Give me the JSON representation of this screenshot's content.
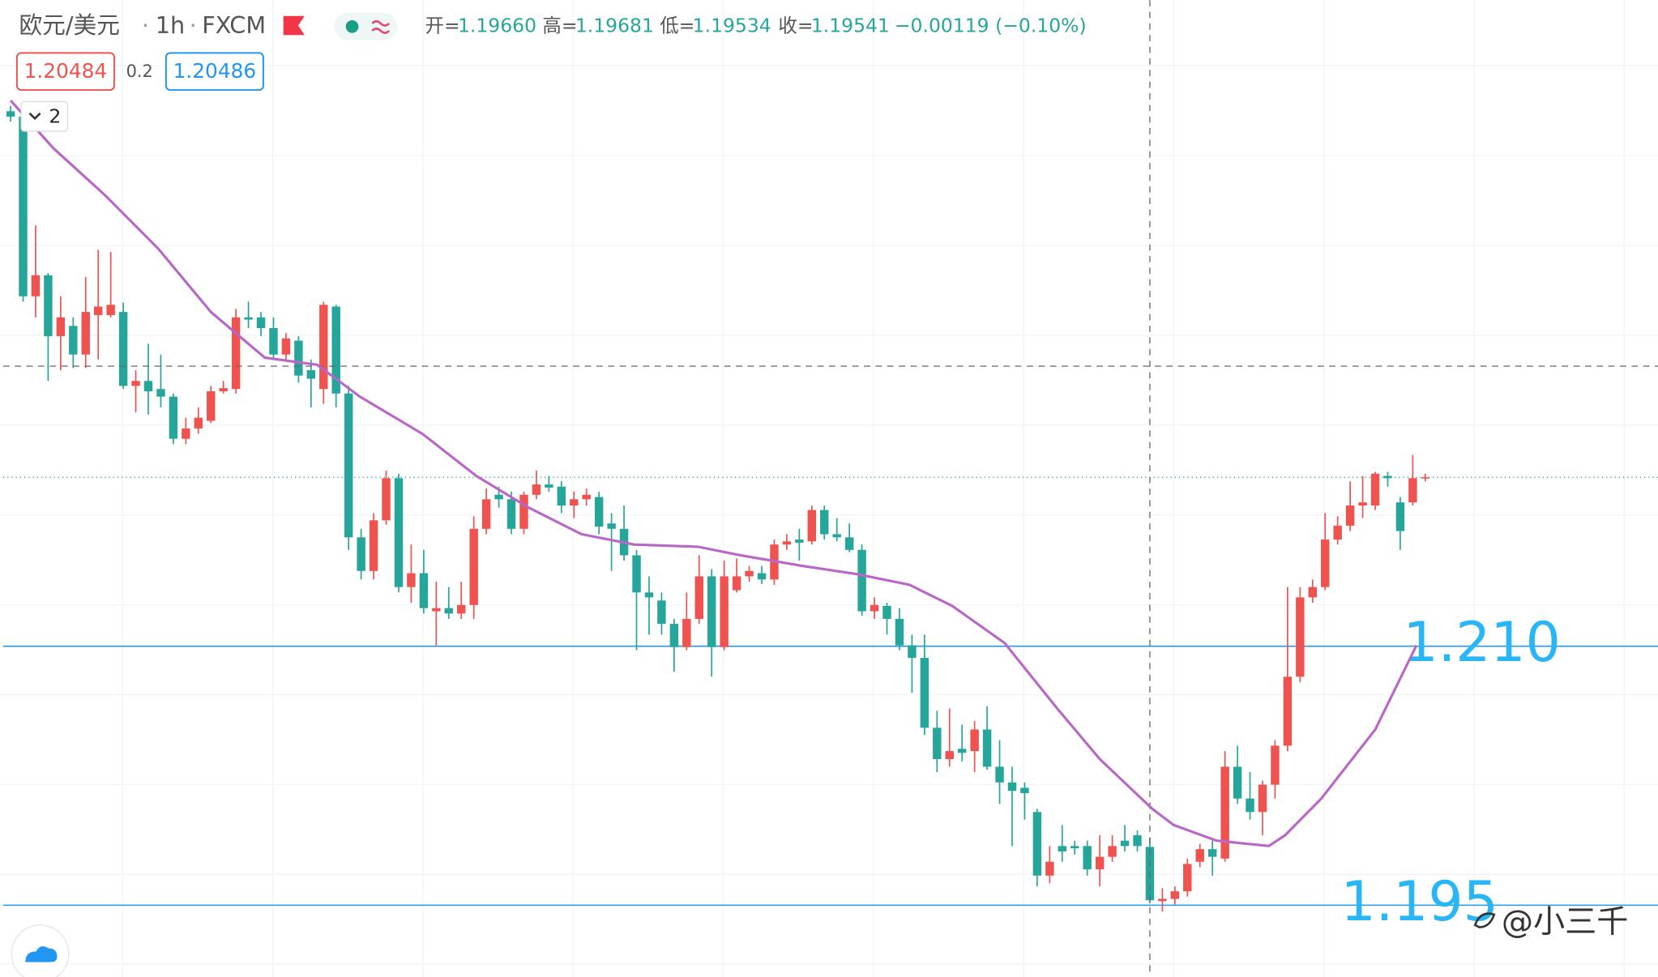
{
  "header": {
    "symbol": "欧元/美元",
    "separator": "·",
    "interval": "1h",
    "source": "FXCM",
    "ohlc": [
      {
        "label": "开=",
        "text": "1.19660"
      },
      {
        "label": "高=",
        "text": "1.19681"
      },
      {
        "label": "低=",
        "text": "1.19534"
      },
      {
        "label": "收=",
        "text": "1.19541"
      }
    ],
    "change": "−0.00119 (−0.10%)",
    "bid": 1.20484,
    "spread": 0.2,
    "ask": 1.20486,
    "indicator_count": 2
  },
  "watermark": "@小三千",
  "chart_data": {
    "type": "candlestick",
    "up_color": "#ef5350",
    "down_color": "#26a69a",
    "ma_color": "#b967c7",
    "level_color": "#2196f3",
    "annotation_color": "#29b6f6",
    "ylim": [
      1.1937,
      1.2155
    ],
    "grid": true,
    "open": [
      1.21302,
      1.2129,
      1.20889,
      1.20936,
      1.208,
      1.20823,
      1.20759,
      1.20847,
      1.20847,
      1.20854,
      1.20689,
      1.207,
      1.20682,
      1.20665,
      1.20571,
      1.20594,
      1.20611,
      1.20677,
      1.20682,
      1.20842,
      1.20842,
      1.20818,
      1.20759,
      1.2079,
      1.20724,
      1.20682,
      1.20866,
      1.20672,
      1.20351,
      1.20276,
      1.20389,
      1.20483,
      1.2024,
      1.20271,
      1.20186,
      1.20193,
      1.20181,
      1.202,
      1.2037,
      1.20446,
      1.20436,
      1.2037,
      1.20446,
      1.20469,
      1.20464,
      1.20422,
      1.20436,
      1.20441,
      1.20382,
      1.2037,
      1.20311,
      1.20228,
      1.2021,
      1.20158,
      1.20106,
      1.20169,
      1.20264,
      1.20106,
      1.20233,
      1.20264,
      1.20271,
      1.20257,
      1.20335,
      1.20346,
      1.20342,
      1.20412,
      1.20358,
      1.20351,
      1.20323,
      1.20186,
      1.20198,
      1.20169,
      1.2011,
      1.20082,
      1.19926,
      1.19856,
      1.19879,
      1.19874,
      1.19922,
      1.19839,
      1.19804,
      1.19792,
      1.19738,
      1.19596,
      1.19662,
      1.19662,
      1.19662,
      1.1961,
      1.19638,
      1.19674,
      1.19686,
      1.1966,
      1.19539,
      1.19544,
      1.19561,
      1.19627,
      1.19655,
      1.19634,
      1.19839,
      1.19768,
      1.19738,
      1.19799,
      1.19886,
      1.2004,
      1.20217,
      1.2024,
      1.20346,
      1.20377,
      1.20422,
      1.20422,
      1.20488,
      1.20429,
      1.20429,
      1.20484
    ],
    "high": [
      1.21314,
      1.21314,
      1.21047,
      1.20941,
      1.20889,
      1.20842,
      1.20932,
      1.20993,
      1.20988,
      1.20875,
      1.20724,
      1.20783,
      1.20759,
      1.20672,
      1.20618,
      1.20641,
      1.20689,
      1.207,
      1.20861,
      1.20877,
      1.20854,
      1.20842,
      1.20807,
      1.208,
      1.20748,
      1.20877,
      1.2087,
      1.20689,
      1.2037,
      1.20405,
      1.205,
      1.20493,
      1.20335,
      1.20323,
      1.20252,
      1.2024,
      1.20252,
      1.20398,
      1.2046,
      1.20464,
      1.20453,
      1.20453,
      1.205,
      1.20488,
      1.20476,
      1.20453,
      1.2046,
      1.20453,
      1.20405,
      1.20422,
      1.20323,
      1.20264,
      1.20228,
      1.20169,
      1.20228,
      1.20311,
      1.2028,
      1.20299,
      1.20304,
      1.20287,
      1.20287,
      1.20346,
      1.20358,
      1.2037,
      1.20422,
      1.20422,
      1.20394,
      1.20382,
      1.20335,
      1.20217,
      1.20205,
      1.20193,
      1.20134,
      1.20134,
      1.19964,
      1.19969,
      1.19933,
      1.19941,
      1.19974,
      1.19898,
      1.19839,
      1.19804,
      1.19745,
      1.19662,
      1.19709,
      1.19674,
      1.19674,
      1.19686,
      1.19686,
      1.19709,
      1.19697,
      1.19681,
      1.19568,
      1.19572,
      1.19634,
      1.19667,
      1.19674,
      1.19874,
      1.19886,
      1.19827,
      1.19808,
      1.19898,
      1.2024,
      1.2024,
      1.20257,
      1.20405,
      1.20398,
      1.20476,
      1.20488,
      1.20497,
      1.20497,
      1.20441,
      1.20535,
      1.20493
    ],
    "low": [
      1.21279,
      1.20877,
      1.20842,
      1.207,
      1.20724,
      1.20729,
      1.20729,
      1.20748,
      1.20842,
      1.20682,
      1.2063,
      1.20625,
      1.20641,
      1.20559,
      1.20559,
      1.20582,
      1.20606,
      1.20672,
      1.20672,
      1.20818,
      1.208,
      1.20748,
      1.20748,
      1.20696,
      1.20641,
      1.20649,
      1.20641,
      1.20323,
      1.20257,
      1.20257,
      1.20379,
      1.20228,
      1.20205,
      1.20181,
      1.2011,
      1.20169,
      1.20169,
      1.20169,
      1.20358,
      1.20417,
      1.20358,
      1.20358,
      1.20436,
      1.20453,
      1.20405,
      1.20394,
      1.20422,
      1.20358,
      1.20276,
      1.20299,
      1.20099,
      1.20134,
      1.20134,
      1.20051,
      1.20099,
      1.20158,
      1.2004,
      1.20099,
      1.20228,
      1.20252,
      1.20247,
      1.20245,
      1.20323,
      1.20299,
      1.20335,
      1.20346,
      1.20342,
      1.20318,
      1.20176,
      1.20169,
      1.20134,
      1.20099,
      1.20004,
      1.1991,
      1.19827,
      1.19839,
      1.19851,
      1.19827,
      1.19832,
      1.19756,
      1.19662,
      1.19721,
      1.19572,
      1.19579,
      1.19627,
      1.19643,
      1.19596,
      1.19572,
      1.19627,
      1.1965,
      1.1965,
      1.19534,
      1.19516,
      1.19532,
      1.19549,
      1.19615,
      1.19596,
      1.19627,
      1.19756,
      1.19721,
      1.19686,
      1.19768,
      1.19874,
      1.20028,
      1.20205,
      1.20233,
      1.20335,
      1.20365,
      1.20394,
      1.20412,
      1.20464,
      1.20323,
      1.20422,
      1.20476
    ],
    "close": [
      1.2129,
      1.20889,
      1.20936,
      1.208,
      1.20842,
      1.20759,
      1.20854,
      1.20866,
      1.2087,
      1.20689,
      1.207,
      1.20677,
      1.20665,
      1.20571,
      1.20594,
      1.20618,
      1.20677,
      1.20684,
      1.20842,
      1.20837,
      1.20818,
      1.20759,
      1.20795,
      1.20712,
      1.20705,
      1.2087,
      1.20672,
      1.20351,
      1.20276,
      1.20389,
      1.20483,
      1.2024,
      1.20271,
      1.20193,
      1.20193,
      1.20181,
      1.202,
      1.2037,
      1.20436,
      1.20436,
      1.2037,
      1.20446,
      1.20469,
      1.20462,
      1.20422,
      1.20436,
      1.20446,
      1.20375,
      1.2037,
      1.20311,
      1.20228,
      1.20217,
      1.20158,
      1.20106,
      1.20169,
      1.20264,
      1.20106,
      1.20264,
      1.20264,
      1.20276,
      1.20257,
      1.20335,
      1.20342,
      1.20339,
      1.20412,
      1.20358,
      1.20351,
      1.20323,
      1.20186,
      1.202,
      1.20169,
      1.2011,
      1.20082,
      1.19926,
      1.19856,
      1.19874,
      1.1987,
      1.19922,
      1.19839,
      1.19804,
      1.19785,
      1.1978,
      1.19596,
      1.19627,
      1.1965,
      1.19657,
      1.1961,
      1.19638,
      1.19662,
      1.19662,
      1.19662,
      1.19541,
      1.19544,
      1.19561,
      1.19622,
      1.19655,
      1.19638,
      1.19839,
      1.19768,
      1.19738,
      1.19799,
      1.19886,
      1.2004,
      1.20217,
      1.2024,
      1.20346,
      1.20377,
      1.20422,
      1.20429,
      1.20493,
      1.20483,
      1.20365,
      1.20483,
      1.20485
    ],
    "ma": {
      "x": [
        0,
        3.4,
        7.6,
        11.8,
        16.0,
        20.3,
        24.5,
        27.9,
        32.9,
        37.2,
        41.4,
        45.6,
        49.8,
        54.9,
        58.3,
        63.3,
        67.6,
        71.8,
        75.2,
        79.4,
        83.6,
        87.0,
        91.2,
        92.9,
        96.3,
        100.5,
        101.8,
        104.7,
        109.0,
        112.3
      ],
      "values": [
        1.21326,
        1.2122,
        1.21113,
        1.20995,
        1.20854,
        1.20752,
        1.20736,
        1.20665,
        1.20582,
        1.20488,
        1.20417,
        1.20358,
        1.20335,
        1.2033,
        1.20311,
        1.20287,
        1.20269,
        1.20245,
        1.20198,
        1.20115,
        1.19969,
        1.19856,
        1.19745,
        1.19709,
        1.19674,
        1.19662,
        1.19686,
        1.19768,
        1.19922,
        1.2011
      ]
    },
    "lines": [
      1.20108,
      1.1953
    ],
    "annotations": [
      "1.210",
      "1.195"
    ],
    "crosshair": {
      "index": 91,
      "price": 1.20733
    }
  }
}
